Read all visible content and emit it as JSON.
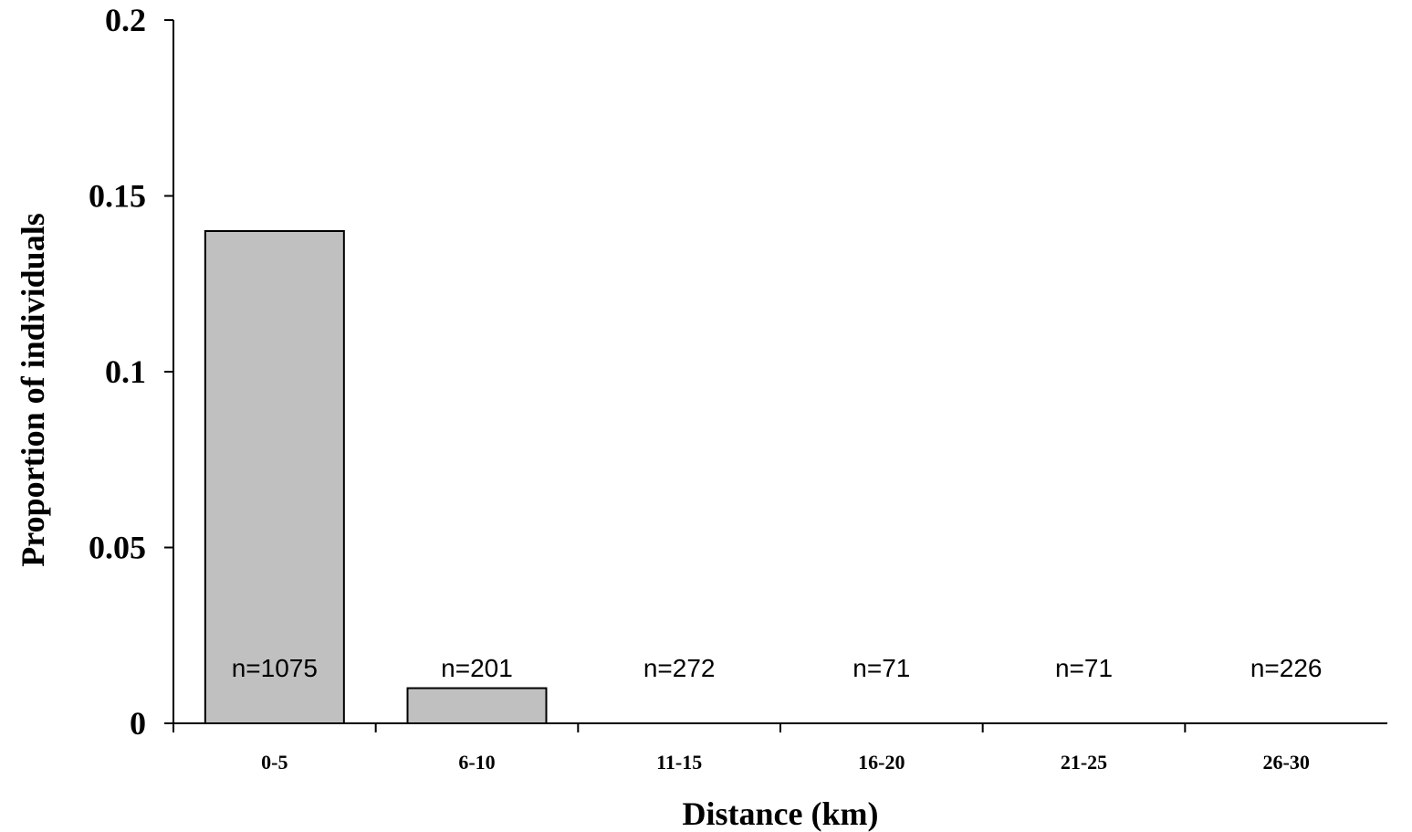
{
  "chart_data": {
    "type": "bar",
    "categories": [
      "0-5",
      "6-10",
      "11-15",
      "16-20",
      "21-25",
      "26-30"
    ],
    "values": [
      0.14,
      0.01,
      0,
      0,
      0,
      0
    ],
    "bar_annotations": [
      "n=1075",
      "n=201",
      "n=272",
      "n=71",
      "n=71",
      "n=226"
    ],
    "xlabel": "Distance (km)",
    "ylabel": "Proportion of individuals",
    "ylim": [
      0,
      0.2
    ],
    "yticks": [
      0,
      0.05,
      0.1,
      0.15,
      0.2
    ],
    "ytick_labels": [
      "0",
      "0.05",
      "0.1",
      "0.15",
      "0.2"
    ],
    "grid": false,
    "colors": {
      "bar_fill": "#c0c0c0",
      "bar_stroke": "#000000",
      "axis": "#000000"
    }
  }
}
